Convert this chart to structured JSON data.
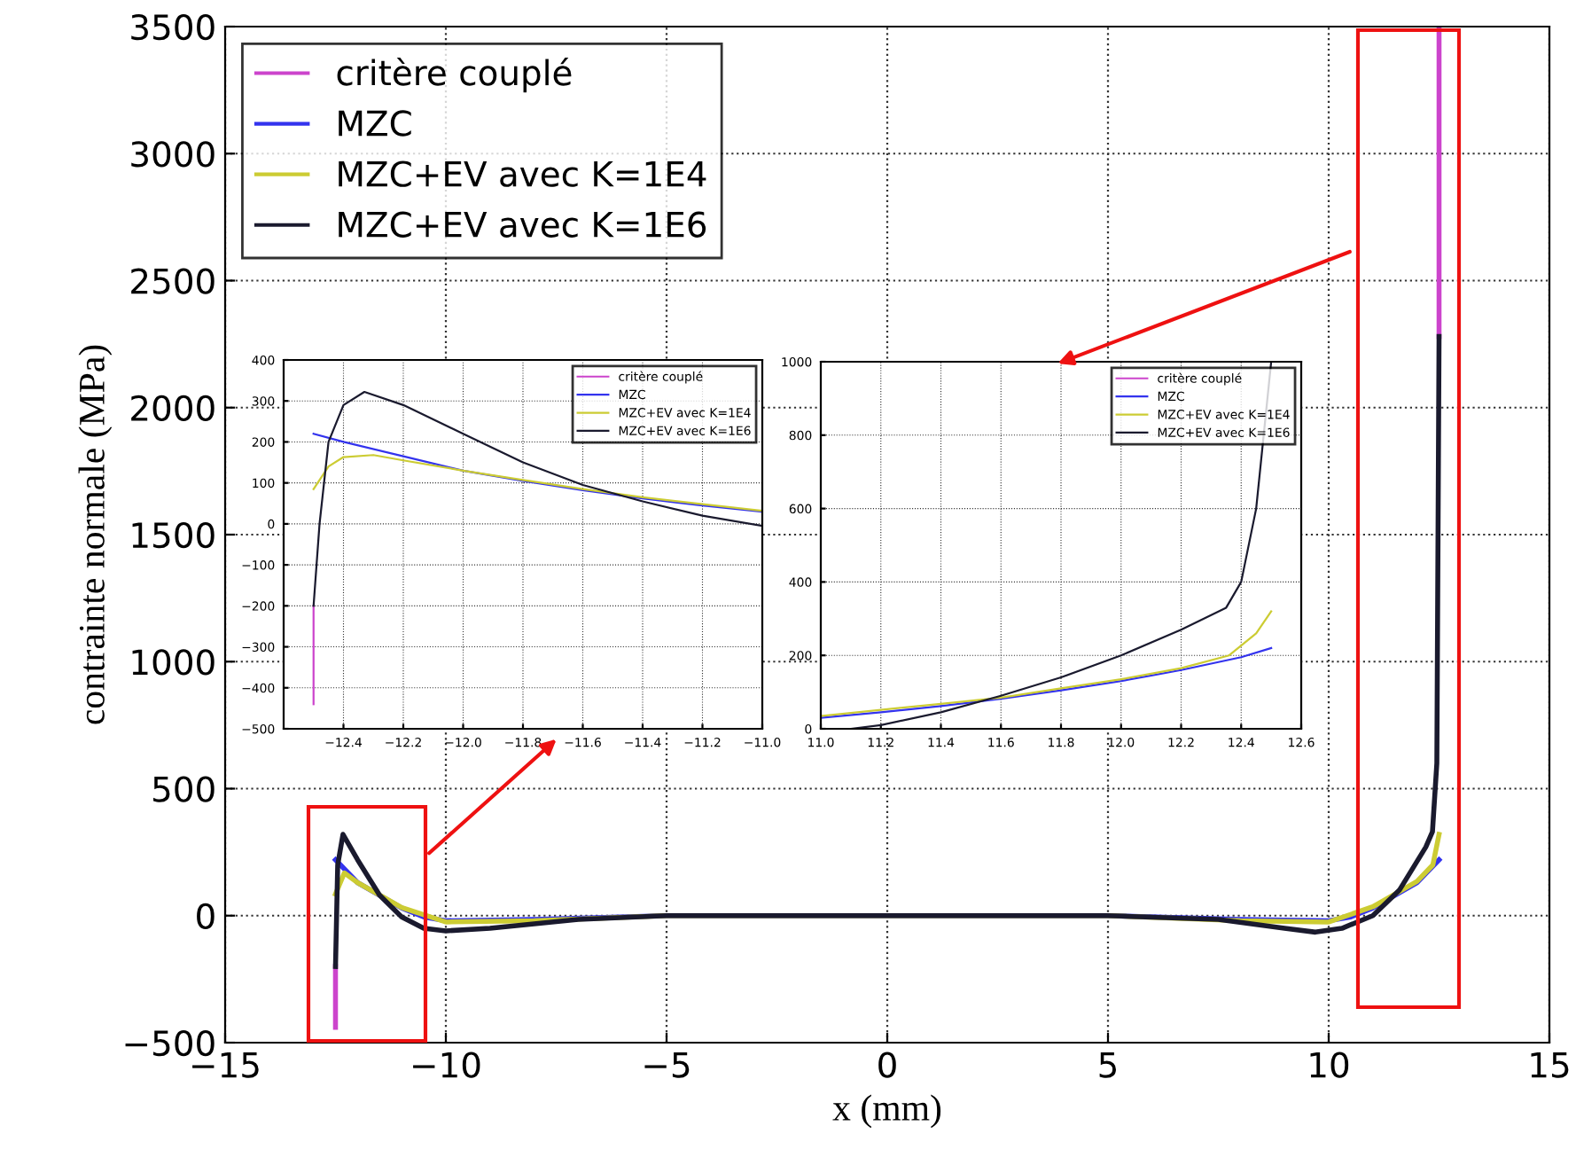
{
  "chart_data": [
    {
      "type": "line",
      "xlabel": "x (mm)",
      "ylabel": "contrainte normale (MPa)",
      "xlim": [
        -15,
        15
      ],
      "ylim": [
        -500,
        3500
      ],
      "xticks": [
        {
          "value": -15,
          "label": "−15"
        },
        {
          "value": -10,
          "label": "−10"
        },
        {
          "value": -5,
          "label": "−5"
        },
        0,
        5,
        10,
        15
      ],
      "yticks": [
        {
          "value": -500,
          "label": "−500"
        },
        0,
        500,
        1000,
        1500,
        2000,
        2500,
        3000,
        3500
      ],
      "grid": true,
      "legend": "top left",
      "series": [
        {
          "name": "critère couplé",
          "color": "#cc44cc",
          "x": [
            -12.5,
            -12.5,
            0,
            12.5,
            12.5
          ],
          "values": [
            -440,
            -200,
            null,
            2280,
            3500
          ]
        },
        {
          "name": "MZC",
          "color": "#3333ee",
          "x": [
            -12.5,
            -12,
            -11,
            -10.5,
            -10,
            -8,
            -5,
            0,
            5,
            8,
            10,
            10.5,
            11,
            12,
            12.5
          ],
          "values": [
            220,
            130,
            30,
            -5,
            -20,
            -15,
            0,
            0,
            0,
            -15,
            -20,
            -5,
            30,
            130,
            220
          ]
        },
        {
          "name": "MZC+EV avec K=1E4",
          "color": "#cccc33",
          "x": [
            -12.5,
            -12.3,
            -12,
            -11,
            -10,
            -8,
            -5,
            0,
            5,
            8,
            10,
            11,
            12,
            12.36,
            12.5
          ],
          "values": [
            85,
            168,
            130,
            32,
            -25,
            -20,
            0,
            0,
            0,
            -20,
            -25,
            35,
            135,
            200,
            320
          ]
        },
        {
          "name": "MZC+EV avec K=1E6",
          "color": "#1a1a2e",
          "x": [
            -12.5,
            -12.45,
            -12.33,
            -12,
            -11.5,
            -11,
            -10.5,
            -10,
            -9,
            -7,
            -5,
            0,
            5,
            7.5,
            9,
            9.7,
            10.3,
            11,
            11.6,
            12.2,
            12.35,
            12.45,
            12.5
          ],
          "values": [
            -200,
            200,
            320,
            220,
            80,
            -5,
            -50,
            -60,
            -50,
            -15,
            0,
            0,
            0,
            -15,
            -50,
            -65,
            -50,
            0,
            100,
            270,
            330,
            600,
            2280
          ]
        }
      ]
    },
    {
      "type": "line",
      "xlim": [
        -12.6,
        -11.0
      ],
      "ylim": [
        -500,
        400
      ],
      "xticks": [
        {
          "value": -12.4,
          "label": "−12.4"
        },
        {
          "value": -12.2,
          "label": "−12.2"
        },
        {
          "value": -12.0,
          "label": "−12.0"
        },
        {
          "value": -11.8,
          "label": "−11.8"
        },
        {
          "value": -11.6,
          "label": "−11.6"
        },
        {
          "value": -11.4,
          "label": "−11.4"
        },
        {
          "value": -11.2,
          "label": "−11.2"
        },
        {
          "value": -11.0,
          "label": "−11.0"
        }
      ],
      "yticks": [
        {
          "value": -500,
          "label": "−500"
        },
        {
          "value": -400,
          "label": "−400"
        },
        {
          "value": -300,
          "label": "−300"
        },
        {
          "value": -200,
          "label": "−200"
        },
        {
          "value": -100,
          "label": "−100"
        },
        0,
        100,
        200,
        300,
        400
      ],
      "grid": true,
      "legend": "top right",
      "series": [
        {
          "name": "critère couplé",
          "color": "#cc44cc",
          "x": [
            -12.5,
            -12.5
          ],
          "values": [
            -440,
            -200
          ]
        },
        {
          "name": "MZC",
          "color": "#3333ee",
          "x": [
            -12.5,
            -12.4,
            -12.2,
            -12.0,
            -11.8,
            -11.6,
            -11.4,
            -11.2,
            -11.0
          ],
          "values": [
            220,
            200,
            165,
            130,
            105,
            82,
            62,
            45,
            30
          ]
        },
        {
          "name": "MZC+EV avec K=1E4",
          "color": "#cccc33",
          "x": [
            -12.5,
            -12.45,
            -12.4,
            -12.3,
            -12.2,
            -12.0,
            -11.8,
            -11.6,
            -11.4,
            -11.2,
            -11.0
          ],
          "values": [
            85,
            140,
            163,
            168,
            155,
            130,
            107,
            85,
            65,
            48,
            32
          ]
        },
        {
          "name": "MZC+EV avec K=1E6",
          "color": "#1a1a2e",
          "x": [
            -12.5,
            -12.48,
            -12.45,
            -12.4,
            -12.33,
            -12.2,
            -12.0,
            -11.8,
            -11.6,
            -11.4,
            -11.2,
            -11.0
          ],
          "values": [
            -200,
            0,
            200,
            290,
            322,
            290,
            220,
            150,
            95,
            55,
            20,
            -5
          ]
        }
      ]
    },
    {
      "type": "line",
      "xlim": [
        11.0,
        12.6
      ],
      "ylim": [
        0,
        1000
      ],
      "xticks": [
        {
          "value": 11.0,
          "label": "11.0"
        },
        11.2,
        11.4,
        11.6,
        11.8,
        {
          "value": 12.0,
          "label": "12.0"
        },
        12.2,
        12.4,
        12.6
      ],
      "yticks": [
        0,
        200,
        400,
        600,
        800,
        1000
      ],
      "grid": true,
      "legend": "top right",
      "series": [
        {
          "name": "critère couplé",
          "color": "#cc44cc"
        },
        {
          "name": "MZC",
          "color": "#3333ee",
          "x": [
            11.0,
            11.2,
            11.4,
            11.6,
            11.8,
            12.0,
            12.2,
            12.4,
            12.5
          ],
          "values": [
            30,
            45,
            62,
            82,
            105,
            130,
            160,
            195,
            220
          ]
        },
        {
          "name": "MZC+EV avec K=1E4",
          "color": "#cccc33",
          "x": [
            11.0,
            11.4,
            11.6,
            11.8,
            12.0,
            12.2,
            12.36,
            12.45,
            12.5
          ],
          "values": [
            35,
            68,
            85,
            110,
            135,
            165,
            200,
            260,
            320
          ]
        },
        {
          "name": "MZC+EV avec K=1E6",
          "color": "#1a1a2e",
          "x": [
            11.1,
            11.2,
            11.4,
            11.6,
            11.8,
            12.0,
            12.2,
            12.35,
            12.4,
            12.45,
            12.5
          ],
          "values": [
            0,
            10,
            45,
            90,
            140,
            200,
            270,
            330,
            400,
            600,
            1000
          ]
        }
      ]
    }
  ]
}
